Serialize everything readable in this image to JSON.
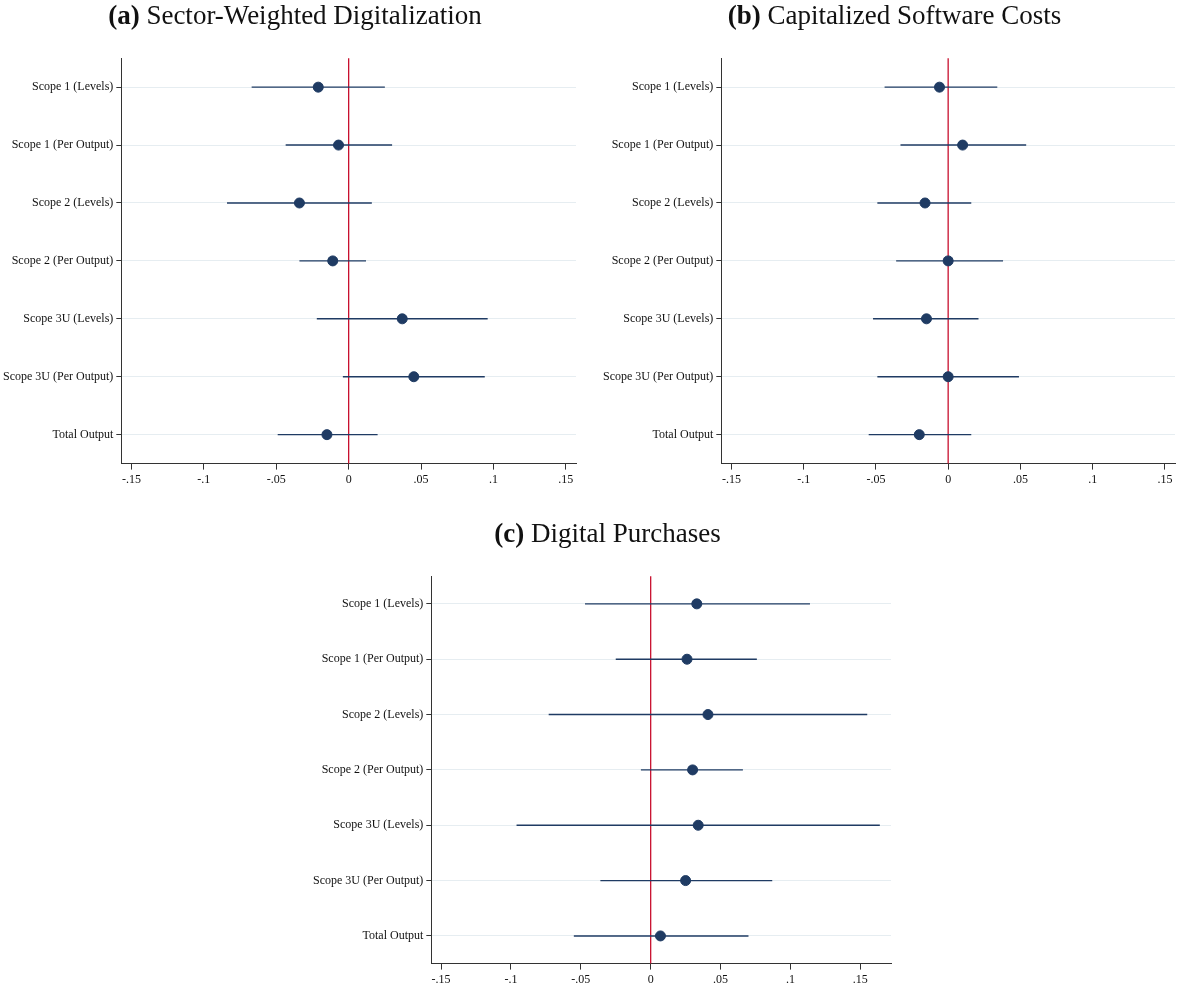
{
  "chart_data": [
    {
      "type": "scatter",
      "title": "(a) Sector-Weighted Digitalization",
      "orientation": "horizontal",
      "marker": "circle",
      "grid": "y",
      "categories": [
        "Scope 1 (Levels)",
        "Scope 1 (Per Output)",
        "Scope 2 (Levels)",
        "Scope 2 (Per Output)",
        "Scope 3U (Levels)",
        "Scope 3U (Per Output)",
        "Total Output"
      ],
      "color": "#1f3b63",
      "values": [
        -0.021,
        -0.007,
        -0.034,
        -0.011,
        0.037,
        0.045,
        -0.015
      ],
      "errors": [
        [
          -0.067,
          0.025
        ],
        [
          -0.0435,
          0.03
        ],
        [
          -0.084,
          0.016
        ],
        [
          -0.034,
          0.012
        ],
        [
          -0.022,
          0.096
        ],
        [
          -0.004,
          0.094
        ],
        [
          -0.049,
          0.02
        ]
      ],
      "xlim": [
        -0.157,
        0.157
      ],
      "xticks": [
        {
          "value": -0.15,
          "label": "-.15"
        },
        {
          "value": -0.1,
          "label": "-.1"
        },
        {
          "value": -0.05,
          "label": "-.05"
        },
        {
          "value": 0,
          "label": "0"
        },
        {
          "value": 0.05,
          "label": ".05"
        },
        {
          "value": 0.1,
          "label": ".1"
        },
        {
          "value": 0.15,
          "label": ".15"
        }
      ],
      "ref_lines": [
        {
          "axis": "x",
          "value": 0,
          "color": "#c8102e"
        }
      ]
    },
    {
      "type": "scatter",
      "title": "(b) Capitalized Software Costs",
      "orientation": "horizontal",
      "marker": "circle",
      "grid": "y",
      "categories": [
        "Scope 1 (Levels)",
        "Scope 1 (Per Output)",
        "Scope 2 (Levels)",
        "Scope 2 (Per Output)",
        "Scope 3U (Levels)",
        "Scope 3U (Per Output)",
        "Total Output"
      ],
      "color": "#1f3b63",
      "values": [
        -0.006,
        0.01,
        -0.016,
        0.0,
        -0.015,
        0.0,
        -0.02
      ],
      "errors": [
        [
          -0.044,
          0.034
        ],
        [
          -0.033,
          0.054
        ],
        [
          -0.049,
          0.016
        ],
        [
          -0.036,
          0.038
        ],
        [
          -0.052,
          0.021
        ],
        [
          -0.049,
          0.049
        ],
        [
          -0.055,
          0.016
        ]
      ],
      "xlim": [
        -0.157,
        0.157
      ],
      "xticks": [
        {
          "value": -0.15,
          "label": "-.15"
        },
        {
          "value": -0.1,
          "label": "-.1"
        },
        {
          "value": -0.05,
          "label": "-.05"
        },
        {
          "value": 0,
          "label": "0"
        },
        {
          "value": 0.05,
          "label": ".05"
        },
        {
          "value": 0.1,
          "label": ".1"
        },
        {
          "value": 0.15,
          "label": ".15"
        }
      ],
      "ref_lines": [
        {
          "axis": "x",
          "value": 0,
          "color": "#c8102e"
        }
      ]
    },
    {
      "type": "scatter",
      "title": "(c) Digital Purchases",
      "orientation": "horizontal",
      "marker": "circle",
      "grid": "y",
      "categories": [
        "Scope 1 (Levels)",
        "Scope 1 (Per Output)",
        "Scope 2 (Levels)",
        "Scope 2 (Per Output)",
        "Scope 3U (Levels)",
        "Scope 3U (Per Output)",
        "Total Output"
      ],
      "color": "#1f3b63",
      "values": [
        0.033,
        0.026,
        0.041,
        0.03,
        0.034,
        0.025,
        0.007
      ],
      "errors": [
        [
          -0.047,
          0.114
        ],
        [
          -0.025,
          0.076
        ],
        [
          -0.073,
          0.155
        ],
        [
          -0.007,
          0.066
        ],
        [
          -0.096,
          0.164
        ],
        [
          -0.036,
          0.087
        ],
        [
          -0.055,
          0.07
        ]
      ],
      "xlim": [
        -0.157,
        0.172
      ],
      "xticks": [
        {
          "value": -0.15,
          "label": "-.15"
        },
        {
          "value": -0.1,
          "label": "-.1"
        },
        {
          "value": -0.05,
          "label": "-.05"
        },
        {
          "value": 0,
          "label": "0"
        },
        {
          "value": 0.05,
          "label": ".05"
        },
        {
          "value": 0.1,
          "label": ".1"
        },
        {
          "value": 0.15,
          "label": ".15"
        }
      ],
      "ref_lines": [
        {
          "axis": "x",
          "value": 0,
          "color": "#c8102e"
        }
      ]
    }
  ]
}
